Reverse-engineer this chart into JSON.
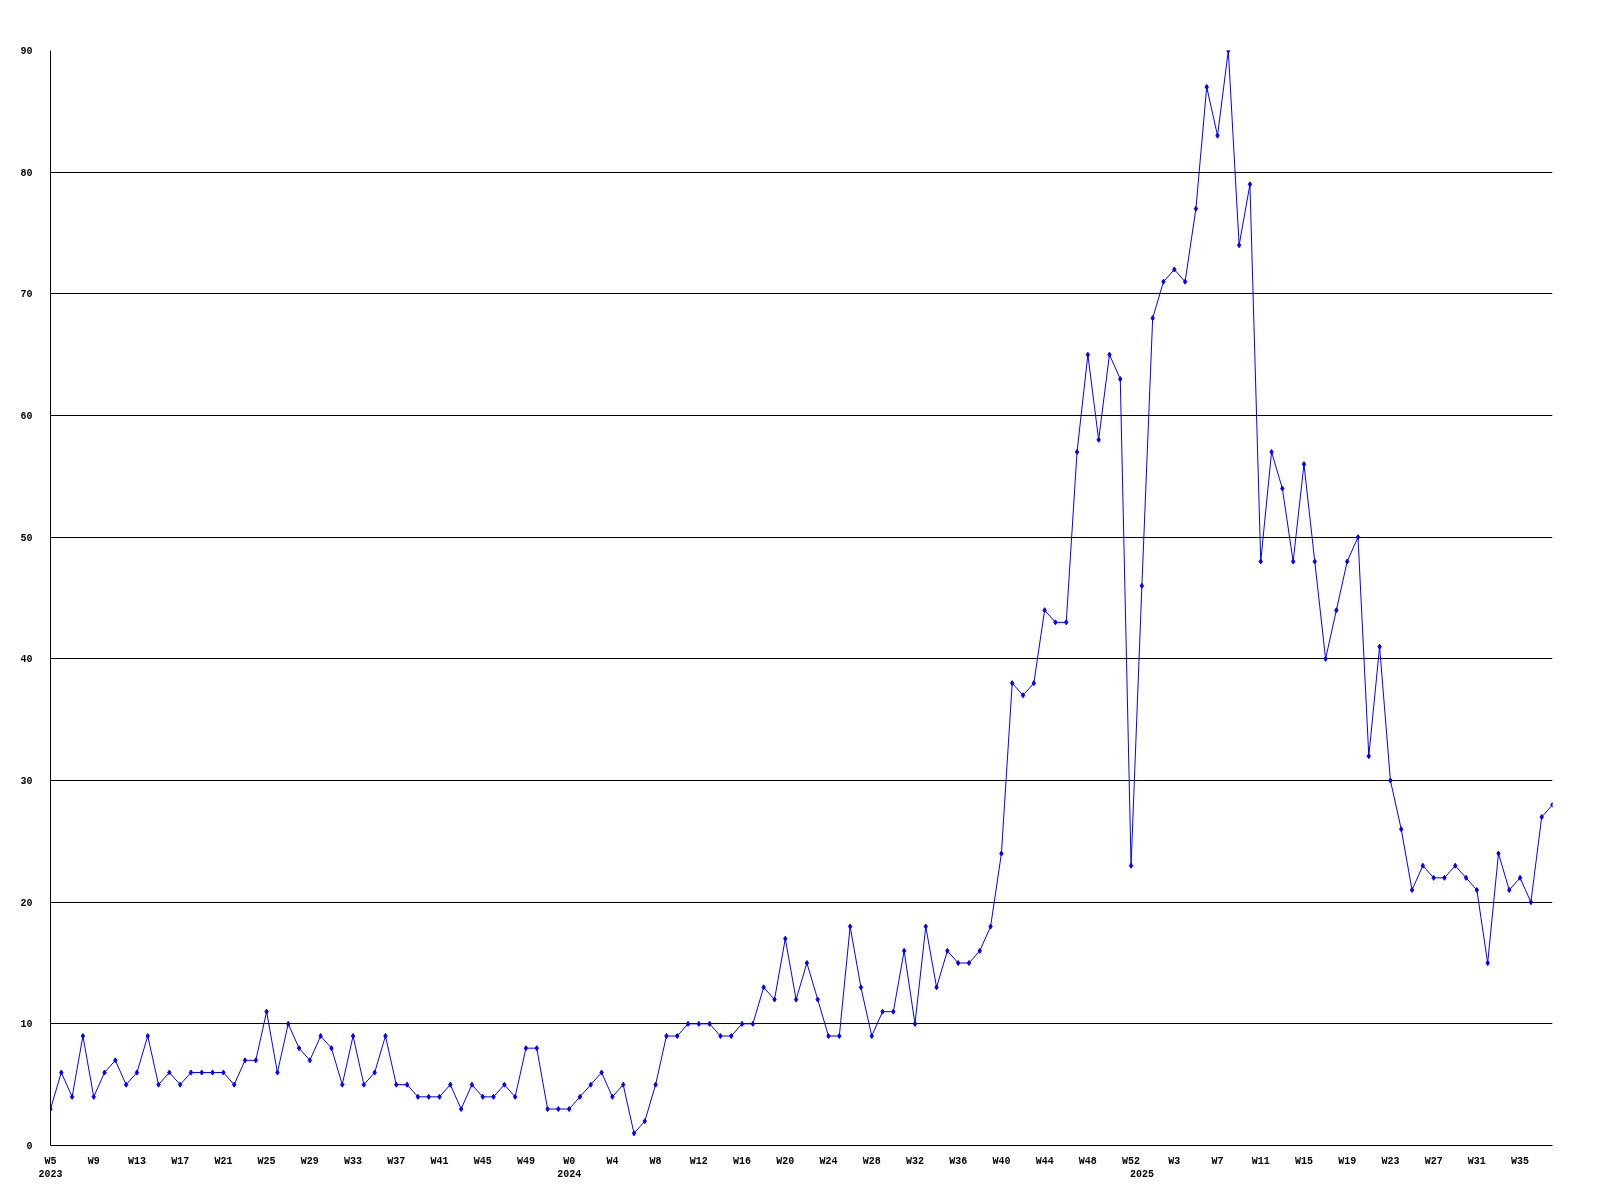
{
  "chart_data": {
    "type": "line",
    "categories": [
      "W5\n2023",
      null,
      null,
      null,
      "W9",
      null,
      null,
      null,
      "W13",
      null,
      null,
      null,
      "W17",
      null,
      null,
      null,
      "W21",
      null,
      null,
      null,
      "W25",
      null,
      null,
      null,
      "W29",
      null,
      null,
      null,
      "W33",
      null,
      null,
      null,
      "W37",
      null,
      null,
      null,
      "W41",
      null,
      null,
      null,
      "W45",
      null,
      null,
      null,
      "W49",
      null,
      null,
      null,
      "W0\n2024",
      null,
      null,
      null,
      "W4",
      null,
      null,
      null,
      "W8",
      null,
      null,
      null,
      "W12",
      null,
      null,
      null,
      "W16",
      null,
      null,
      null,
      "W20",
      null,
      null,
      null,
      "W24",
      null,
      null,
      null,
      "W28",
      null,
      null,
      null,
      "W32",
      null,
      null,
      null,
      "W36",
      null,
      null,
      null,
      "W40",
      null,
      null,
      null,
      "W44",
      null,
      null,
      null,
      "W48",
      null,
      null,
      null,
      "W52",
      "\n2025",
      null,
      null,
      "W3",
      null,
      null,
      null,
      "W7",
      null,
      null,
      null,
      "W11",
      null,
      null,
      null,
      "W15",
      null,
      null,
      null,
      "W19",
      null,
      null,
      null,
      "W23",
      null,
      null,
      null,
      "W27",
      null,
      null,
      null,
      "W31",
      null,
      null,
      null,
      "W35",
      null,
      null,
      null
    ],
    "series": [
      {
        "color": "#0000ff",
        "values": [
          3,
          6,
          4,
          9,
          4,
          6,
          7,
          5,
          6,
          9,
          5,
          6,
          5,
          6,
          6,
          6,
          6,
          5,
          7,
          7,
          11,
          6,
          10,
          8,
          7,
          9,
          8,
          5,
          9,
          5,
          6,
          9,
          5,
          5,
          4,
          4,
          4,
          5,
          3,
          5,
          4,
          4,
          5,
          4,
          8,
          8,
          3,
          3,
          3,
          4,
          5,
          6,
          4,
          5,
          1,
          2,
          5,
          9,
          9,
          10,
          10,
          10,
          9,
          9,
          10,
          10,
          13,
          12,
          17,
          12,
          15,
          12,
          9,
          9,
          18,
          13,
          9,
          11,
          11,
          16,
          10,
          18,
          13,
          16,
          15,
          15,
          16,
          18,
          24,
          38,
          37,
          38,
          44,
          43,
          43,
          57,
          65,
          58,
          65,
          63,
          23,
          46,
          68,
          71,
          72,
          71,
          77,
          87,
          83,
          90,
          74,
          79,
          48,
          57,
          54,
          48,
          56,
          48,
          40,
          44,
          48,
          50,
          32,
          41,
          30,
          26,
          21,
          23,
          22,
          22,
          23,
          22,
          21,
          15,
          24,
          21,
          22,
          20,
          27,
          28
        ]
      }
    ],
    "ylim": [
      0,
      90
    ],
    "yticks": [
      0,
      10,
      20,
      30,
      40,
      50,
      60,
      70,
      80,
      90
    ],
    "grid": "y",
    "marker": "diamond",
    "line_style": "solid"
  }
}
